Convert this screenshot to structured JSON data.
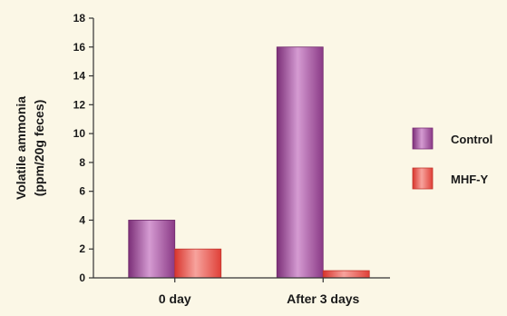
{
  "chart_data": {
    "type": "bar",
    "title": "",
    "xlabel": "",
    "ylabel_lines": [
      "Volatile ammonia",
      "(ppm/20g feces)"
    ],
    "categories": [
      "0 day",
      "After 3 days"
    ],
    "series": [
      {
        "name": "Control",
        "values": [
          4,
          16
        ],
        "color": "#a1569e"
      },
      {
        "name": "MHF-Y",
        "values": [
          2,
          0.5
        ],
        "color": "#e8534a"
      }
    ],
    "ylim": [
      0,
      18
    ],
    "yticks": [
      0,
      2,
      4,
      6,
      8,
      10,
      12,
      14,
      16,
      18
    ],
    "grid": false,
    "legend_position": "right"
  }
}
